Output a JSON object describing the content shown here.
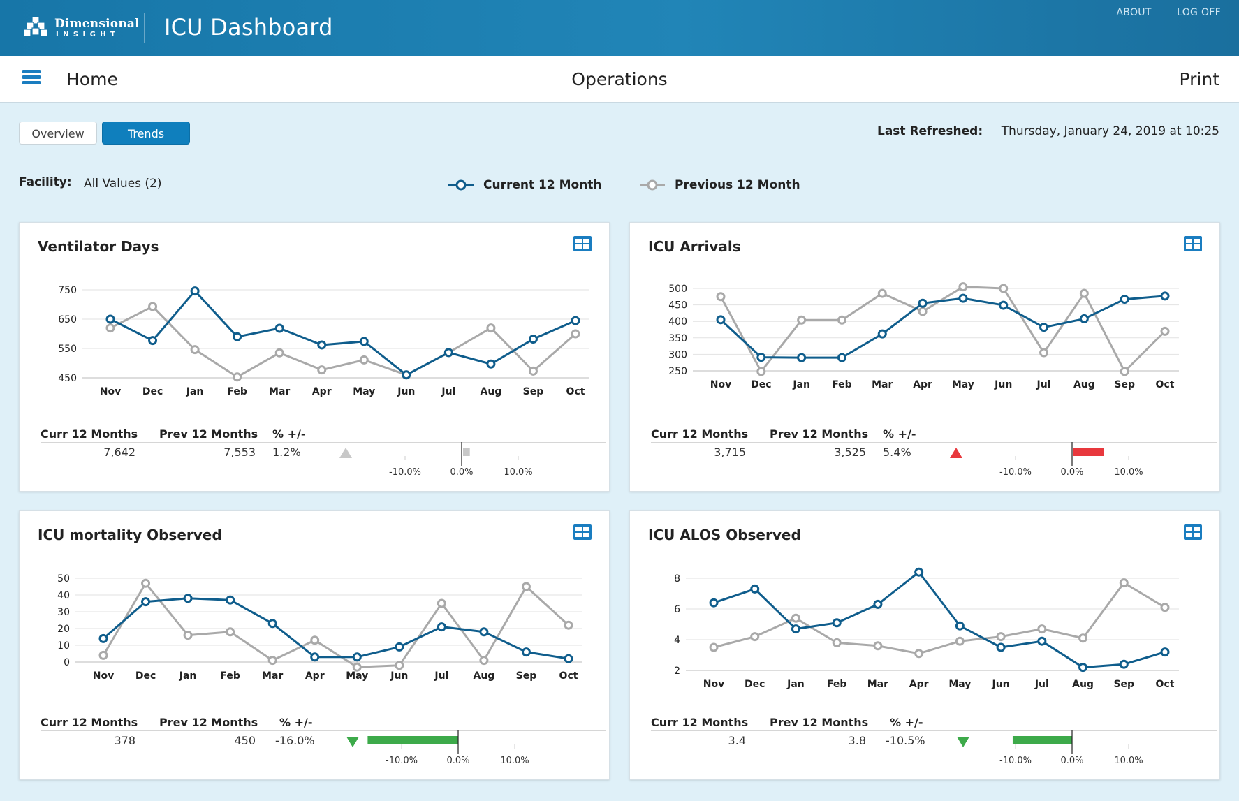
{
  "header": {
    "logo_word1": "Dimensional",
    "logo_word2": "INSIGHT",
    "title": "ICU Dashboard",
    "links": [
      "ABOUT",
      "LOG OFF"
    ]
  },
  "nav": {
    "home": "Home",
    "page": "Operations",
    "print": "Print"
  },
  "tabs": {
    "overview": "Overview",
    "trends": "Trends",
    "active": "Trends"
  },
  "refresh": {
    "label": "Last Refreshed:",
    "value": "Thursday, January 24, 2019 at 10:25"
  },
  "filter": {
    "label": "Facility:",
    "value": "All Values (2)"
  },
  "legend": {
    "current": {
      "label": "Current 12 Month",
      "color": "#0f5d8c"
    },
    "previous": {
      "label": "Previous 12 Month",
      "color": "#a9a9a9"
    }
  },
  "summary_headers": {
    "curr": "Curr 12 Months",
    "prev": "Prev 12 Months",
    "pct": "% +/-"
  },
  "icons": {
    "table": "table-grid-icon",
    "menu": "hamburger-icon"
  },
  "status_colors": {
    "up_neutral": "#c8c8c8",
    "up_bad": "#e8383d",
    "down_good": "#3daa4a"
  },
  "chart_data": [
    {
      "type": "line",
      "title": "Ventilator Days",
      "categories": [
        "Nov",
        "Dec",
        "Jan",
        "Feb",
        "Mar",
        "Apr",
        "May",
        "Jun",
        "Jul",
        "Aug",
        "Sep",
        "Oct"
      ],
      "ylim": [
        450,
        750
      ],
      "yticks": [
        "450",
        "550",
        "650",
        "750"
      ],
      "series": [
        {
          "name": "Current 12 Month",
          "values": [
            650,
            577,
            746,
            590,
            619,
            562,
            574,
            460,
            536,
            497,
            582,
            645
          ]
        },
        {
          "name": "Previous 12 Month",
          "values": [
            620,
            693,
            546,
            453,
            535,
            477,
            511,
            460,
            536,
            620,
            473,
            600
          ]
        }
      ],
      "summary": {
        "curr": "7,642",
        "prev": "7,553",
        "pct": "1.2%",
        "pct_value": 1.2,
        "direction": "up",
        "status": "neutral"
      },
      "bullet_ticks": [
        "-10.0%",
        "0.0%",
        "10.0%"
      ]
    },
    {
      "type": "line",
      "title": "ICU Arrivals",
      "categories": [
        "Nov",
        "Dec",
        "Jan",
        "Feb",
        "Mar",
        "Apr",
        "May",
        "Jun",
        "Jul",
        "Aug",
        "Sep",
        "Oct"
      ],
      "ylim": [
        250,
        500
      ],
      "yticks": [
        "250",
        "300",
        "350",
        "400",
        "450",
        "500"
      ],
      "series": [
        {
          "name": "Current 12 Month",
          "values": [
            405,
            291,
            290,
            290,
            362,
            455,
            470,
            449,
            382,
            408,
            467,
            477
          ]
        },
        {
          "name": "Previous 12 Month",
          "values": [
            475,
            248,
            404,
            404,
            485,
            430,
            505,
            500,
            305,
            485,
            248,
            370
          ]
        }
      ],
      "summary": {
        "curr": "3,715",
        "prev": "3,525",
        "pct": "5.4%",
        "pct_value": 5.4,
        "direction": "up",
        "status": "bad"
      },
      "bullet_ticks": [
        "-10.0%",
        "0.0%",
        "10.0%"
      ]
    },
    {
      "type": "line",
      "title": "ICU mortality Observed",
      "categories": [
        "Nov",
        "Dec",
        "Jan",
        "Feb",
        "Mar",
        "Apr",
        "May",
        "Jun",
        "Jul",
        "Aug",
        "Sep",
        "Oct"
      ],
      "ylim": [
        0,
        50
      ],
      "yticks": [
        "0",
        "10",
        "20",
        "30",
        "40",
        "50"
      ],
      "series": [
        {
          "name": "Current 12 Month",
          "values": [
            14,
            36,
            38,
            37,
            23,
            3,
            3,
            9,
            21,
            18,
            6,
            2
          ]
        },
        {
          "name": "Previous 12 Month",
          "values": [
            4,
            47,
            16,
            18,
            1,
            13,
            -3,
            -2,
            35,
            1,
            45,
            22
          ]
        }
      ],
      "summary": {
        "curr": "378",
        "prev": "450",
        "pct": "-16.0%",
        "pct_value": -16.0,
        "direction": "down",
        "status": "good"
      },
      "bullet_ticks": [
        "-10.0%",
        "0.0%",
        "10.0%"
      ]
    },
    {
      "type": "line",
      "title": "ICU ALOS Observed",
      "categories": [
        "Nov",
        "Dec",
        "Jan",
        "Feb",
        "Mar",
        "Apr",
        "May",
        "Jun",
        "Jul",
        "Aug",
        "Sep",
        "Oct"
      ],
      "ylim": [
        2,
        8
      ],
      "yticks": [
        "2",
        "4",
        "6",
        "8"
      ],
      "series": [
        {
          "name": "Current 12 Month",
          "values": [
            6.4,
            7.3,
            4.7,
            5.1,
            6.3,
            8.4,
            4.9,
            3.5,
            3.9,
            2.2,
            2.4,
            3.2
          ]
        },
        {
          "name": "Previous 12 Month",
          "values": [
            3.5,
            4.2,
            5.4,
            3.8,
            3.6,
            3.1,
            3.9,
            4.2,
            4.7,
            4.1,
            7.7,
            6.1
          ]
        }
      ],
      "summary": {
        "curr": "3.4",
        "prev": "3.8",
        "pct": "-10.5%",
        "pct_value": -10.5,
        "direction": "down",
        "status": "good"
      },
      "bullet_ticks": [
        "-10.0%",
        "0.0%",
        "10.0%"
      ]
    }
  ]
}
